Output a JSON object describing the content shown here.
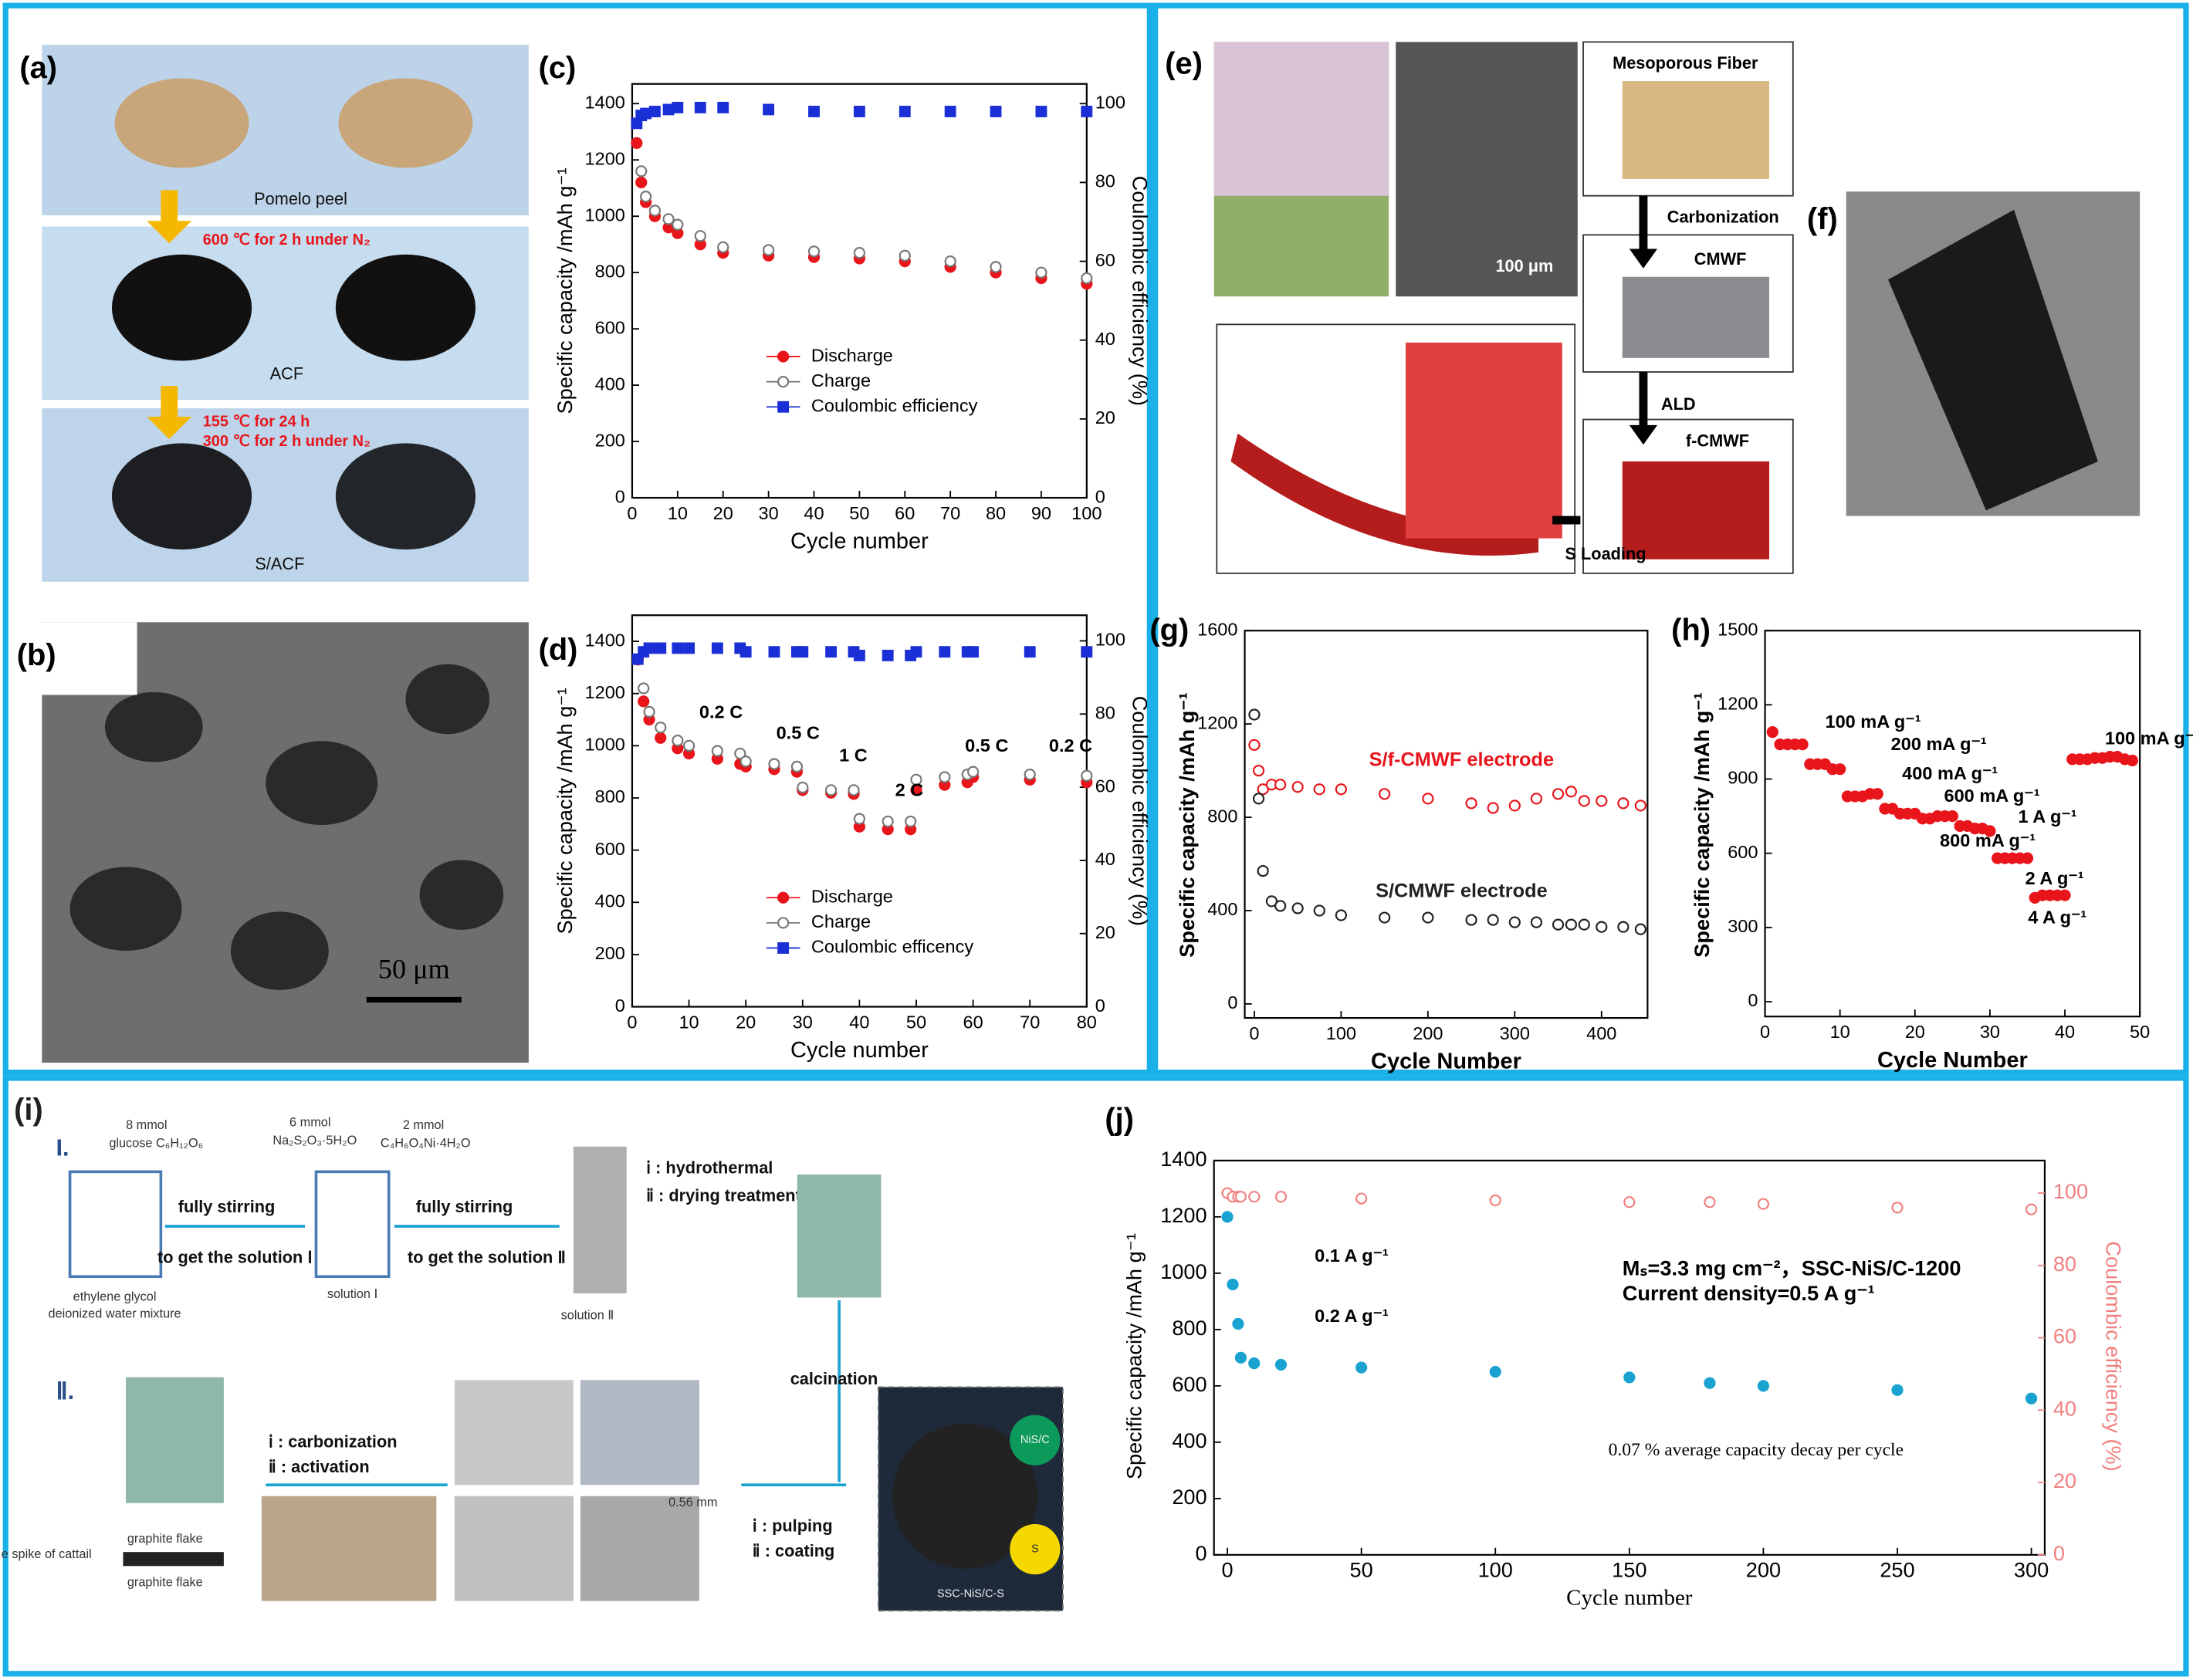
{
  "figure": {
    "a": {
      "label": "(a)",
      "texts": [
        "Pomelo peel",
        "600 ℃ for 2 h under N₂",
        "ACF",
        "155 ℃ for 24 h",
        "300 ℃ for 2 h under N₂",
        "S/ACF"
      ]
    },
    "b": {
      "label": "(b)",
      "scale": "50 μm"
    },
    "e": {
      "label": "(e)",
      "texts": [
        "Mesoporous Fiber",
        "Carbonization",
        "CMWF",
        "ALD",
        "f-CMWF",
        "S Loading",
        "100 μm"
      ]
    },
    "f": {
      "label": "(f)"
    },
    "i": {
      "label": "(i)",
      "texts": [
        "I.",
        "8 mmol",
        "glucose C₆H₁₂O₆",
        "6 mmol",
        "Na₂S₂O₃·5H₂O",
        "2 mmol",
        "C₄H₆O₄Ni·4H₂O",
        "fully stirring",
        "to get the solution Ⅰ",
        "fully stirring",
        "to get the solution Ⅱ",
        "ⅰ : hydrothermal",
        "ⅱ : drying treatment",
        "ethylene glycol",
        "deionized water mixture",
        "solution Ⅰ",
        "solution Ⅱ",
        "Ⅱ.",
        "calcination",
        "ⅰ : carbonization",
        "ⅱ : activation",
        "graphite flake",
        "e spike of cattail",
        "graphite flake",
        "ⅰ : pulping",
        "ⅱ : coating",
        "SSC-NiS/C-S",
        "NiS/C",
        "S",
        "0.56 mm"
      ]
    }
  },
  "chart_data": [
    {
      "type": "line",
      "title": "(c)",
      "xlabel": "Cycle number",
      "ylabel": "Specific capacity /mAh g⁻¹",
      "y2label": "Coulombic efficiency (%)",
      "legend": "center",
      "x": [
        1,
        2,
        3,
        5,
        8,
        10,
        15,
        20,
        30,
        40,
        50,
        60,
        70,
        80,
        90,
        100
      ],
      "xlim": [
        0,
        100
      ],
      "xticks": [
        0,
        10,
        20,
        30,
        40,
        50,
        60,
        70,
        80,
        90,
        100
      ],
      "ylim": [
        0,
        1470
      ],
      "yticks": [
        0,
        200,
        400,
        600,
        800,
        1000,
        1200,
        1400
      ],
      "y2lim": [
        0,
        105
      ],
      "y2ticks": [
        0,
        20,
        40,
        60,
        80,
        100
      ],
      "series": [
        {
          "name": "Discharge",
          "color": "#e8151b",
          "marker": "circle",
          "values": [
            1260,
            1120,
            1050,
            1000,
            960,
            940,
            900,
            870,
            860,
            855,
            850,
            840,
            820,
            800,
            780,
            760
          ]
        },
        {
          "name": "Charge",
          "color": "#777777",
          "marker": "circle",
          "hollow": true,
          "values": [
            null,
            1160,
            1070,
            1020,
            990,
            970,
            930,
            890,
            880,
            875,
            870,
            860,
            840,
            820,
            800,
            780
          ]
        },
        {
          "name": "Coulombic efficiency",
          "color": "#1a2fd6",
          "marker": "square",
          "axis": "y2",
          "values": [
            95,
            97,
            97.5,
            98,
            98.5,
            99,
            99,
            99,
            98.5,
            98,
            98,
            98,
            98,
            98,
            98,
            98
          ]
        }
      ]
    },
    {
      "type": "line",
      "title": "(d)",
      "xlabel": "Cycle number",
      "ylabel": "Specific capacity /mAh g⁻¹",
      "y2label": "Coulombic efficiency (%)",
      "legend": "center",
      "x": [
        1,
        2,
        3,
        5,
        8,
        10,
        15,
        19,
        20,
        25,
        29,
        30,
        35,
        39,
        40,
        45,
        49,
        50,
        55,
        59,
        60,
        70,
        80
      ],
      "xlim": [
        0,
        80
      ],
      "xticks": [
        0,
        10,
        20,
        30,
        40,
        50,
        60,
        70,
        80
      ],
      "ylim": [
        0,
        1500
      ],
      "yticks": [
        0,
        200,
        400,
        600,
        800,
        1000,
        1200,
        1400
      ],
      "y2lim": [
        0,
        107
      ],
      "y2ticks": [
        0,
        20,
        40,
        60,
        80,
        100
      ],
      "annotations": [
        "0.2 C",
        "0.5 C",
        "1 C",
        "2 C",
        "0.5 C",
        "0.2 C"
      ],
      "series": [
        {
          "name": "Discharge",
          "color": "#e8151b",
          "marker": "circle",
          "values": [
            1330,
            1170,
            1100,
            1030,
            990,
            970,
            950,
            930,
            920,
            910,
            900,
            830,
            820,
            815,
            690,
            680,
            680,
            830,
            850,
            860,
            880,
            870,
            860
          ]
        },
        {
          "name": "Charge",
          "color": "#777777",
          "marker": "circle",
          "hollow": true,
          "values": [
            null,
            1220,
            1130,
            1070,
            1020,
            1000,
            980,
            970,
            940,
            930,
            920,
            840,
            830,
            830,
            720,
            710,
            710,
            870,
            880,
            890,
            900,
            890,
            885
          ]
        },
        {
          "name": "Coulombic efficency",
          "color": "#1a2fd6",
          "marker": "square",
          "axis": "y2",
          "values": [
            95,
            97,
            98,
            98,
            98,
            98,
            98,
            98,
            97,
            97,
            97,
            97,
            97,
            97,
            96,
            96,
            96,
            97,
            97,
            97,
            97,
            97,
            97
          ]
        }
      ]
    },
    {
      "type": "line",
      "title": "(g)",
      "xlabel": "Cycle Number",
      "ylabel": "Specific capacity /mAh g⁻¹",
      "legend": "inline",
      "x": [
        0,
        5,
        10,
        20,
        30,
        50,
        75,
        100,
        150,
        200,
        250,
        275,
        300,
        325,
        350,
        365,
        380,
        400,
        425,
        445
      ],
      "xlim": [
        -11,
        453
      ],
      "xticks": [
        0,
        100,
        200,
        300,
        400
      ],
      "ylim": [
        -60,
        1600
      ],
      "yticks": [
        0,
        400,
        800,
        1200,
        1600
      ],
      "series": [
        {
          "name": "S/f-CMWF electrode",
          "color": "#e8151b",
          "marker": "circle",
          "hollow": true,
          "values": [
            1110,
            1000,
            920,
            940,
            940,
            930,
            920,
            920,
            900,
            880,
            860,
            840,
            850,
            880,
            900,
            910,
            870,
            870,
            860,
            850
          ]
        },
        {
          "name": "S/CMWF electrode",
          "color": "#222222",
          "marker": "circle",
          "hollow": true,
          "values": [
            1240,
            880,
            570,
            440,
            420,
            410,
            400,
            380,
            370,
            370,
            360,
            360,
            350,
            350,
            340,
            340,
            340,
            330,
            330,
            320
          ]
        }
      ]
    },
    {
      "type": "line",
      "title": "(h)",
      "xlabel": "Cycle Number",
      "ylabel": "Specific capacity /mAh g⁻¹",
      "legend": "none",
      "x": [
        1,
        2,
        3,
        4,
        5,
        6,
        7,
        8,
        9,
        10,
        11,
        12,
        13,
        14,
        15,
        16,
        17,
        18,
        19,
        20,
        21,
        22,
        23,
        24,
        25,
        26,
        27,
        28,
        29,
        30,
        31,
        32,
        33,
        34,
        35,
        36,
        37,
        38,
        39,
        40,
        41,
        42,
        43,
        44,
        45,
        46,
        47,
        48,
        49
      ],
      "xlim": [
        0,
        50
      ],
      "xticks": [
        0,
        10,
        20,
        30,
        40,
        50
      ],
      "ylim": [
        -60,
        1500
      ],
      "yticks": [
        0,
        300,
        600,
        900,
        1200,
        1500
      ],
      "annotations": [
        "100 mA g⁻¹",
        "200 mA g⁻¹",
        "400 mA g⁻¹",
        "600 mA g⁻¹",
        "800 mA g⁻¹",
        "1 A g⁻¹",
        "2 A g⁻¹",
        "4 A g⁻¹",
        "100 mA g⁻¹"
      ],
      "series": [
        {
          "name": "Discharge",
          "color": "#e8151b",
          "marker": "circle",
          "values": [
            1090,
            1040,
            1040,
            1040,
            1040,
            960,
            960,
            960,
            940,
            940,
            830,
            830,
            830,
            840,
            840,
            780,
            780,
            760,
            760,
            760,
            740,
            740,
            750,
            750,
            750,
            710,
            710,
            700,
            700,
            690,
            580,
            580,
            580,
            580,
            580,
            420,
            430,
            430,
            430,
            430,
            980,
            980,
            980,
            985,
            985,
            990,
            990,
            980,
            975
          ]
        }
      ]
    },
    {
      "type": "line",
      "title": "(j)",
      "xlabel": "Cycle number",
      "ylabel": "Specific capacity /mAh g⁻¹",
      "y2label": "Coulombic efficiency (%)",
      "legend": "none",
      "x": [
        0,
        2,
        4,
        5,
        10,
        20,
        50,
        100,
        150,
        180,
        200,
        250,
        300
      ],
      "xlim": [
        -5,
        305
      ],
      "xticks": [
        0,
        50,
        100,
        150,
        200,
        250,
        300
      ],
      "ylim": [
        0,
        1400
      ],
      "yticks": [
        0,
        200,
        400,
        600,
        800,
        1000,
        1200,
        1400
      ],
      "y2lim": [
        0,
        109
      ],
      "y2ticks": [
        0,
        20,
        40,
        60,
        80,
        100
      ],
      "annotations": [
        "0.1 A g⁻¹",
        "0.2 A g⁻¹",
        "0.07 % average capacity decay per cycle",
        "Mₛ=3.3 mg cm⁻²，SSC-NiS/C-1200",
        "Current density=0.5 A g⁻¹"
      ],
      "series": [
        {
          "name": "Capacity",
          "color": "#1aa3d1",
          "marker": "circle",
          "values": [
            1200,
            960,
            820,
            700,
            680,
            675,
            665,
            650,
            630,
            610,
            600,
            585,
            555
          ]
        },
        {
          "name": "Coulombic efficiency",
          "color": "#f08080",
          "marker": "circle",
          "hollow": true,
          "axis": "y2",
          "values": [
            100,
            99,
            99,
            99,
            99,
            99,
            98.5,
            98,
            97.5,
            97.5,
            97,
            96,
            95.5
          ]
        }
      ]
    }
  ]
}
